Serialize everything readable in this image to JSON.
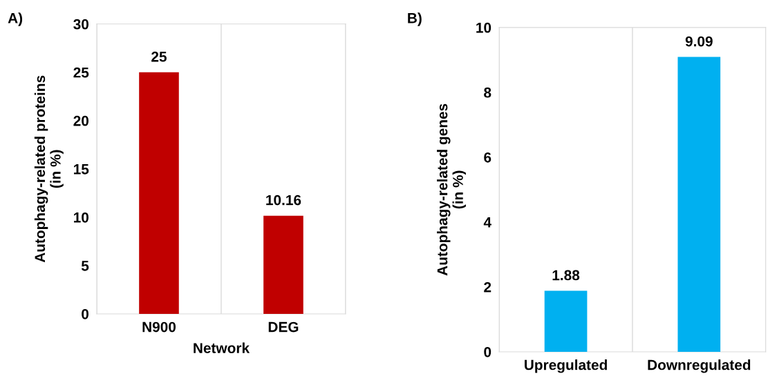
{
  "chart_data": [
    {
      "type": "bar",
      "categories": [
        "N900",
        "DEG"
      ],
      "values": [
        25,
        10.16
      ],
      "color": "#c00000",
      "ylabel": "Autophagy-related proteins\n(in %)",
      "xlabel": "Network",
      "ylim": [
        0,
        30
      ],
      "yticks": [
        0,
        5,
        10,
        15,
        20,
        25,
        30
      ],
      "grid": "x",
      "data_labels": true,
      "annotations": [
        "A)"
      ]
    },
    {
      "type": "bar",
      "categories": [
        "Upregulated",
        "Downregulated"
      ],
      "values": [
        1.88,
        9.09
      ],
      "color": "#00b0f0",
      "ylabel": "Autophagy-related genes\n(in %)",
      "ylim": [
        0,
        10
      ],
      "yticks": [
        0,
        2,
        4,
        6,
        8,
        10
      ],
      "grid": "x",
      "data_labels": true,
      "annotations": [
        "B)"
      ]
    }
  ]
}
